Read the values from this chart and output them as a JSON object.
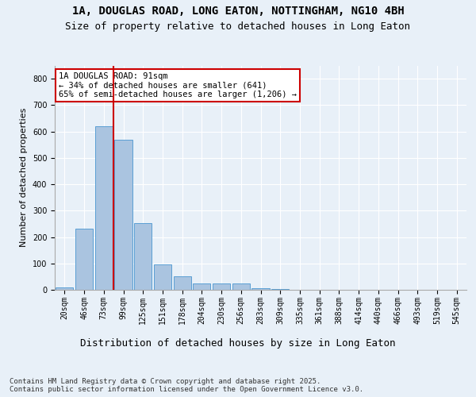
{
  "title_line1": "1A, DOUGLAS ROAD, LONG EATON, NOTTINGHAM, NG10 4BH",
  "title_line2": "Size of property relative to detached houses in Long Eaton",
  "xlabel": "Distribution of detached houses by size in Long Eaton",
  "ylabel": "Number of detached properties",
  "categories": [
    "20sqm",
    "46sqm",
    "73sqm",
    "99sqm",
    "125sqm",
    "151sqm",
    "178sqm",
    "204sqm",
    "230sqm",
    "256sqm",
    "283sqm",
    "309sqm",
    "335sqm",
    "361sqm",
    "388sqm",
    "414sqm",
    "440sqm",
    "466sqm",
    "493sqm",
    "519sqm",
    "545sqm"
  ],
  "values": [
    10,
    233,
    620,
    570,
    252,
    97,
    50,
    23,
    23,
    23,
    7,
    2,
    0,
    0,
    0,
    0,
    0,
    0,
    0,
    0,
    0
  ],
  "bar_color": "#aac4e0",
  "bar_edge_color": "#5a9fd4",
  "vline_color": "#cc0000",
  "annotation_text": "1A DOUGLAS ROAD: 91sqm\n← 34% of detached houses are smaller (641)\n65% of semi-detached houses are larger (1,206) →",
  "annotation_box_color": "#ffffff",
  "annotation_box_edge": "#cc0000",
  "ylim": [
    0,
    850
  ],
  "yticks": [
    0,
    100,
    200,
    300,
    400,
    500,
    600,
    700,
    800
  ],
  "bg_color": "#e8f0f8",
  "plot_bg_color": "#e8f0f8",
  "footer": "Contains HM Land Registry data © Crown copyright and database right 2025.\nContains public sector information licensed under the Open Government Licence v3.0.",
  "title_fontsize": 10,
  "subtitle_fontsize": 9,
  "xlabel_fontsize": 9,
  "ylabel_fontsize": 8,
  "tick_fontsize": 7,
  "footer_fontsize": 6.5
}
